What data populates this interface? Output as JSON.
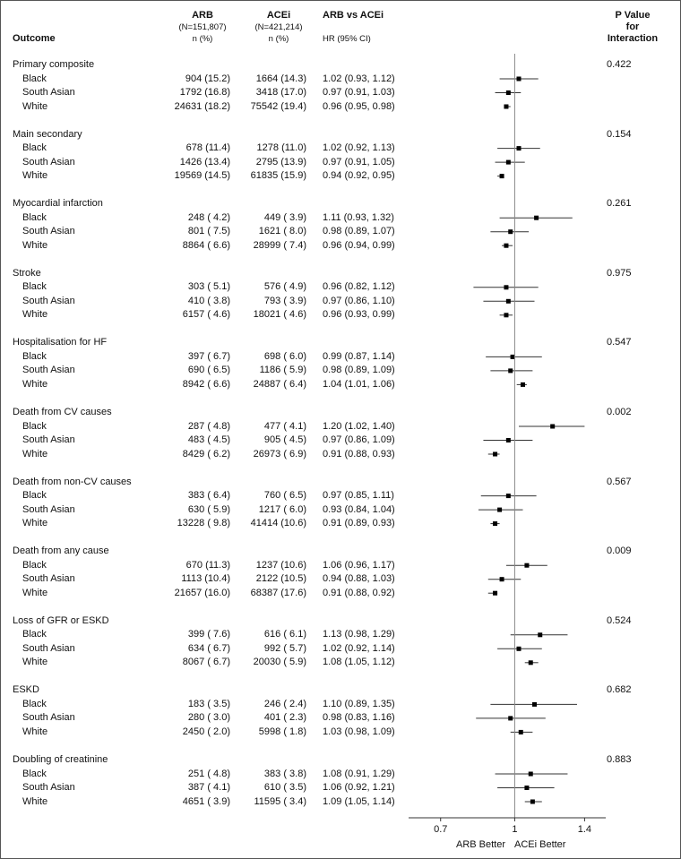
{
  "headers": {
    "outcome": "Outcome",
    "arb": "ARB",
    "arb_n": "(N=151,807)",
    "arb_np": "n (%)",
    "acei": "ACEi",
    "acei_n": "(N=421,214)",
    "acei_np": "n (%)",
    "hr": "ARB vs ACEi",
    "hr_ci": "HR (95% CI)",
    "p_line1": "P Value",
    "p_line2": "for",
    "p_line3": "Interaction"
  },
  "footer": {
    "arb_better": "ARB Better",
    "acei_better": "ACEi Better"
  },
  "chart_data": {
    "type": "forest",
    "xscale": "log",
    "xlim": [
      0.6,
      1.55
    ],
    "reference_line": 1,
    "xticks": [
      0.7,
      1,
      1.4
    ],
    "xtick_labels": [
      "0.7",
      "1",
      "1.4"
    ],
    "columns": [
      "Outcome",
      "ARB n (%)",
      "ACEi n (%)",
      "HR (95% CI)",
      "P Value for Interaction"
    ],
    "groups": [
      {
        "outcome": "Primary composite",
        "p": "0.422",
        "rows": [
          {
            "label": "Black",
            "arb": "904 (15.2)",
            "acei": "1664 (14.3)",
            "hr_text": "1.02 (0.93, 1.12)",
            "hr": 1.02,
            "lo": 0.93,
            "hi": 1.12
          },
          {
            "label": "South Asian",
            "arb": "1792 (16.8)",
            "acei": "3418 (17.0)",
            "hr_text": "0.97 (0.91, 1.03)",
            "hr": 0.97,
            "lo": 0.91,
            "hi": 1.03
          },
          {
            "label": "White",
            "arb": "24631 (18.2)",
            "acei": "75542 (19.4)",
            "hr_text": "0.96 (0.95, 0.98)",
            "hr": 0.96,
            "lo": 0.95,
            "hi": 0.98
          }
        ]
      },
      {
        "outcome": "Main secondary",
        "p": "0.154",
        "rows": [
          {
            "label": "Black",
            "arb": "678 (11.4)",
            "acei": "1278 (11.0)",
            "hr_text": "1.02 (0.92, 1.13)",
            "hr": 1.02,
            "lo": 0.92,
            "hi": 1.13
          },
          {
            "label": "South Asian",
            "arb": "1426 (13.4)",
            "acei": "2795 (13.9)",
            "hr_text": "0.97 (0.91, 1.05)",
            "hr": 0.97,
            "lo": 0.91,
            "hi": 1.05
          },
          {
            "label": "White",
            "arb": "19569 (14.5)",
            "acei": "61835 (15.9)",
            "hr_text": "0.94 (0.92, 0.95)",
            "hr": 0.94,
            "lo": 0.92,
            "hi": 0.95
          }
        ]
      },
      {
        "outcome": "Myocardial infarction",
        "p": "0.261",
        "rows": [
          {
            "label": "Black",
            "arb": "248 ( 4.2)",
            "acei": "449 ( 3.9)",
            "hr_text": "1.11 (0.93, 1.32)",
            "hr": 1.11,
            "lo": 0.93,
            "hi": 1.32
          },
          {
            "label": "South Asian",
            "arb": "801 ( 7.5)",
            "acei": "1621 ( 8.0)",
            "hr_text": "0.98 (0.89, 1.07)",
            "hr": 0.98,
            "lo": 0.89,
            "hi": 1.07
          },
          {
            "label": "White",
            "arb": "8864 ( 6.6)",
            "acei": "28999 ( 7.4)",
            "hr_text": "0.96 (0.94, 0.99)",
            "hr": 0.96,
            "lo": 0.94,
            "hi": 0.99
          }
        ]
      },
      {
        "outcome": "Stroke",
        "p": "0.975",
        "rows": [
          {
            "label": "Black",
            "arb": "303 ( 5.1)",
            "acei": "576 ( 4.9)",
            "hr_text": "0.96 (0.82, 1.12)",
            "hr": 0.96,
            "lo": 0.82,
            "hi": 1.12
          },
          {
            "label": "South Asian",
            "arb": "410 ( 3.8)",
            "acei": "793 ( 3.9)",
            "hr_text": "0.97 (0.86, 1.10)",
            "hr": 0.97,
            "lo": 0.86,
            "hi": 1.1
          },
          {
            "label": "White",
            "arb": "6157 ( 4.6)",
            "acei": "18021 ( 4.6)",
            "hr_text": "0.96 (0.93, 0.99)",
            "hr": 0.96,
            "lo": 0.93,
            "hi": 0.99
          }
        ]
      },
      {
        "outcome": "Hospitalisation for HF",
        "p": "0.547",
        "rows": [
          {
            "label": "Black",
            "arb": "397 ( 6.7)",
            "acei": "698 ( 6.0)",
            "hr_text": "0.99 (0.87, 1.14)",
            "hr": 0.99,
            "lo": 0.87,
            "hi": 1.14
          },
          {
            "label": "South Asian",
            "arb": "690 ( 6.5)",
            "acei": "1186 ( 5.9)",
            "hr_text": "0.98 (0.89, 1.09)",
            "hr": 0.98,
            "lo": 0.89,
            "hi": 1.09
          },
          {
            "label": "White",
            "arb": "8942 ( 6.6)",
            "acei": "24887 ( 6.4)",
            "hr_text": "1.04 (1.01, 1.06)",
            "hr": 1.04,
            "lo": 1.01,
            "hi": 1.06
          }
        ]
      },
      {
        "outcome": "Death from CV causes",
        "p": "0.002",
        "rows": [
          {
            "label": "Black",
            "arb": "287 ( 4.8)",
            "acei": "477 ( 4.1)",
            "hr_text": "1.20 (1.02, 1.40)",
            "hr": 1.2,
            "lo": 1.02,
            "hi": 1.4
          },
          {
            "label": "South Asian",
            "arb": "483 ( 4.5)",
            "acei": "905 ( 4.5)",
            "hr_text": "0.97 (0.86, 1.09)",
            "hr": 0.97,
            "lo": 0.86,
            "hi": 1.09
          },
          {
            "label": "White",
            "arb": "8429 ( 6.2)",
            "acei": "26973 ( 6.9)",
            "hr_text": "0.91 (0.88, 0.93)",
            "hr": 0.91,
            "lo": 0.88,
            "hi": 0.93
          }
        ]
      },
      {
        "outcome": "Death from non-CV causes",
        "p": "0.567",
        "rows": [
          {
            "label": "Black",
            "arb": "383 ( 6.4)",
            "acei": "760 ( 6.5)",
            "hr_text": "0.97 (0.85, 1.11)",
            "hr": 0.97,
            "lo": 0.85,
            "hi": 1.11
          },
          {
            "label": "South Asian",
            "arb": "630 ( 5.9)",
            "acei": "1217 ( 6.0)",
            "hr_text": "0.93 (0.84, 1.04)",
            "hr": 0.93,
            "lo": 0.84,
            "hi": 1.04
          },
          {
            "label": "White",
            "arb": "13228 ( 9.8)",
            "acei": "41414 (10.6)",
            "hr_text": "0.91 (0.89, 0.93)",
            "hr": 0.91,
            "lo": 0.89,
            "hi": 0.93
          }
        ]
      },
      {
        "outcome": "Death from any cause",
        "p": "0.009",
        "rows": [
          {
            "label": "Black",
            "arb": "670 (11.3)",
            "acei": "1237 (10.6)",
            "hr_text": "1.06 (0.96, 1.17)",
            "hr": 1.06,
            "lo": 0.96,
            "hi": 1.17
          },
          {
            "label": "South Asian",
            "arb": "1113 (10.4)",
            "acei": "2122 (10.5)",
            "hr_text": "0.94 (0.88, 1.03)",
            "hr": 0.94,
            "lo": 0.88,
            "hi": 1.03
          },
          {
            "label": "White",
            "arb": "21657 (16.0)",
            "acei": "68387 (17.6)",
            "hr_text": "0.91 (0.88, 0.92)",
            "hr": 0.91,
            "lo": 0.88,
            "hi": 0.92
          }
        ]
      },
      {
        "outcome": "Loss of GFR or ESKD",
        "p": "0.524",
        "rows": [
          {
            "label": "Black",
            "arb": "399 ( 7.6)",
            "acei": "616 ( 6.1)",
            "hr_text": "1.13 (0.98, 1.29)",
            "hr": 1.13,
            "lo": 0.98,
            "hi": 1.29
          },
          {
            "label": "South Asian",
            "arb": "634 ( 6.7)",
            "acei": "992 ( 5.7)",
            "hr_text": "1.02 (0.92, 1.14)",
            "hr": 1.02,
            "lo": 0.92,
            "hi": 1.14
          },
          {
            "label": "White",
            "arb": "8067 ( 6.7)",
            "acei": "20030 ( 5.9)",
            "hr_text": "1.08 (1.05, 1.12)",
            "hr": 1.08,
            "lo": 1.05,
            "hi": 1.12
          }
        ]
      },
      {
        "outcome": "ESKD",
        "p": "0.682",
        "rows": [
          {
            "label": "Black",
            "arb": "183 ( 3.5)",
            "acei": "246 ( 2.4)",
            "hr_text": "1.10 (0.89, 1.35)",
            "hr": 1.1,
            "lo": 0.89,
            "hi": 1.35
          },
          {
            "label": "South Asian",
            "arb": "280 ( 3.0)",
            "acei": "401 ( 2.3)",
            "hr_text": "0.98 (0.83, 1.16)",
            "hr": 0.98,
            "lo": 0.83,
            "hi": 1.16
          },
          {
            "label": "White",
            "arb": "2450 ( 2.0)",
            "acei": "5998 ( 1.8)",
            "hr_text": "1.03 (0.98, 1.09)",
            "hr": 1.03,
            "lo": 0.98,
            "hi": 1.09
          }
        ]
      },
      {
        "outcome": "Doubling of creatinine",
        "p": "0.883",
        "rows": [
          {
            "label": "Black",
            "arb": "251 ( 4.8)",
            "acei": "383 ( 3.8)",
            "hr_text": "1.08 (0.91, 1.29)",
            "hr": 1.08,
            "lo": 0.91,
            "hi": 1.29
          },
          {
            "label": "South Asian",
            "arb": "387 ( 4.1)",
            "acei": "610 ( 3.5)",
            "hr_text": "1.06 (0.92, 1.21)",
            "hr": 1.06,
            "lo": 0.92,
            "hi": 1.21
          },
          {
            "label": "White",
            "arb": "4651 ( 3.9)",
            "acei": "11595 ( 3.4)",
            "hr_text": "1.09 (1.05, 1.14)",
            "hr": 1.09,
            "lo": 1.05,
            "hi": 1.14
          }
        ]
      }
    ]
  }
}
